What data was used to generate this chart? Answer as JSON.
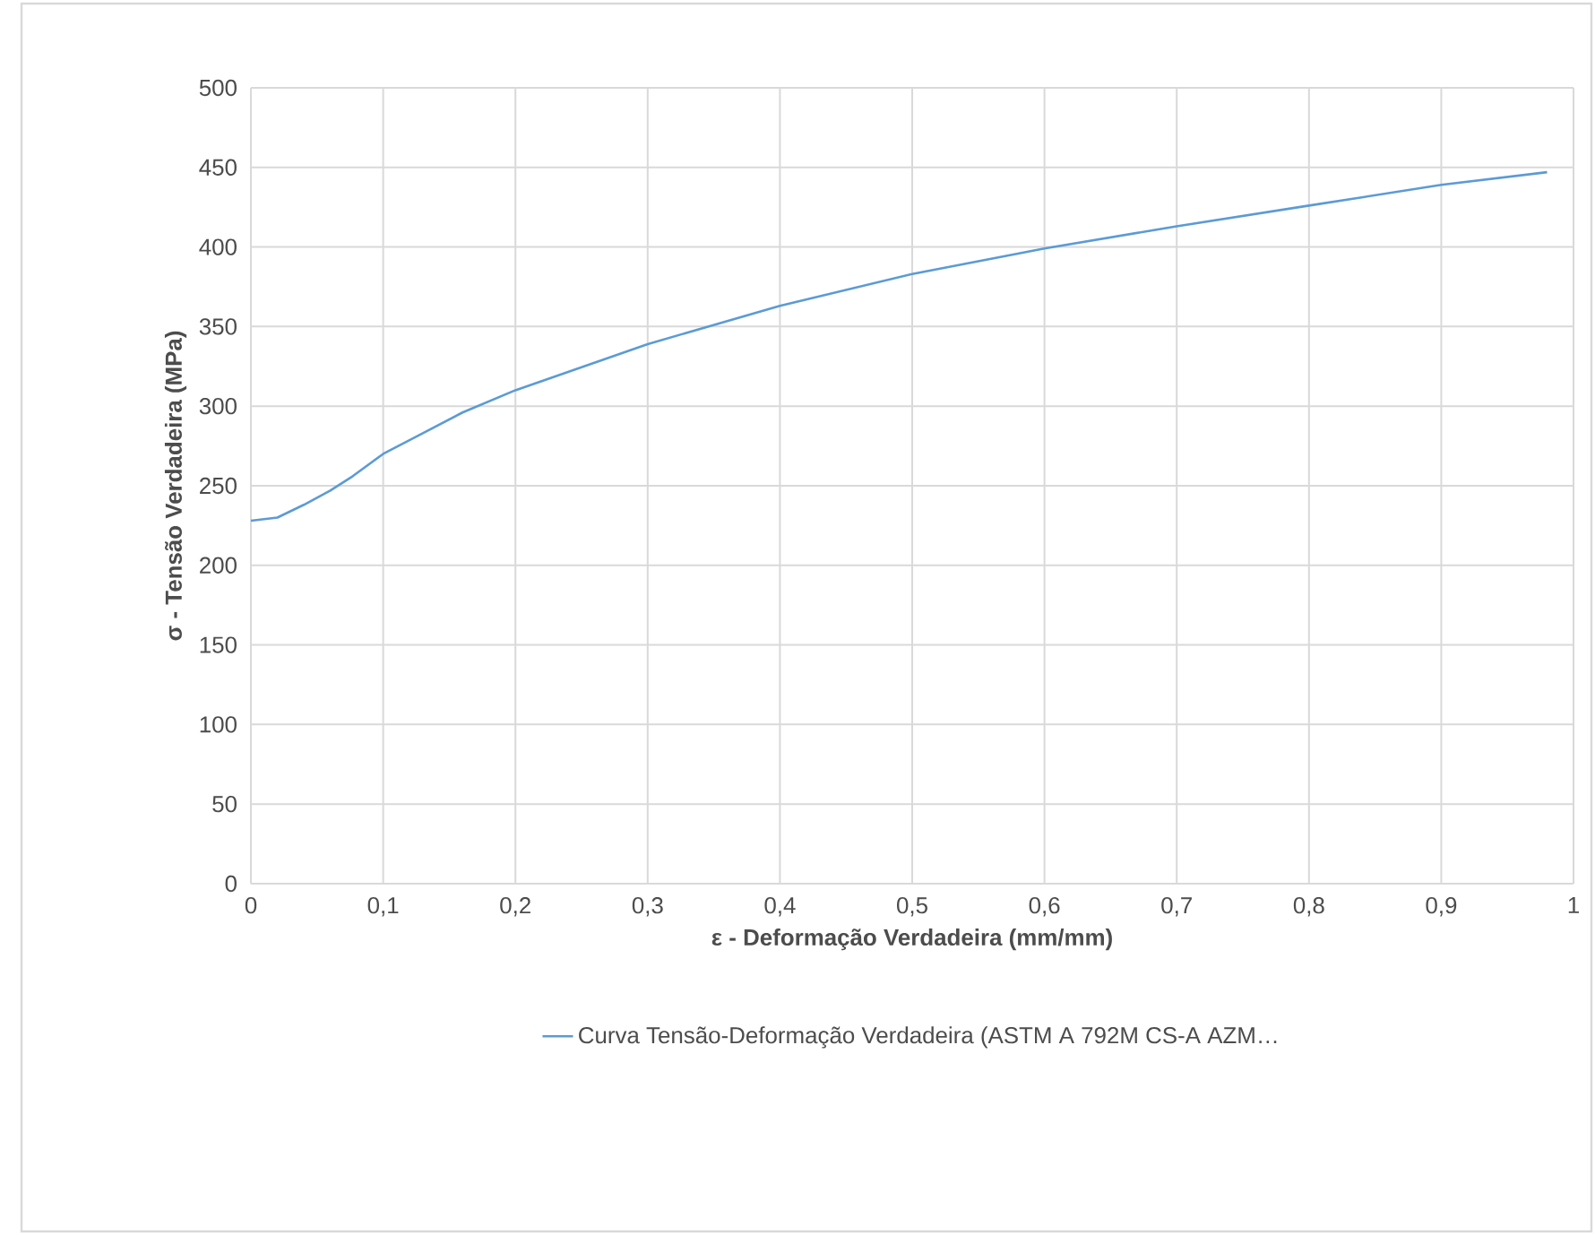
{
  "chart_data": {
    "type": "line",
    "xlabel": "ε - Deformação Verdadeira (mm/mm)",
    "ylabel": "σ - Tensão Verdadeira (MPa)",
    "x": [
      0,
      0.02,
      0.04,
      0.06,
      0.077,
      0.1,
      0.13,
      0.16,
      0.2,
      0.3,
      0.4,
      0.5,
      0.6,
      0.7,
      0.8,
      0.9,
      0.98
    ],
    "series": [
      {
        "name": "Curva Tensão-Deformação Verdadeira (ASTM A 792M CS-A AZM…",
        "color": "#5b9bd5",
        "values": [
          228,
          230,
          238,
          247,
          256,
          270,
          283,
          296,
          310,
          339,
          363,
          383,
          399,
          413,
          426,
          439,
          447
        ]
      }
    ],
    "xlim": [
      0,
      1
    ],
    "xticks": [
      {
        "value": 0,
        "label": "0"
      },
      {
        "value": 0.1,
        "label": "0,1"
      },
      {
        "value": 0.2,
        "label": "0,2"
      },
      {
        "value": 0.3,
        "label": "0,3"
      },
      {
        "value": 0.4,
        "label": "0,4"
      },
      {
        "value": 0.5,
        "label": "0,5"
      },
      {
        "value": 0.6,
        "label": "0,6"
      },
      {
        "value": 0.7,
        "label": "0,7"
      },
      {
        "value": 0.8,
        "label": "0,8"
      },
      {
        "value": 0.9,
        "label": "0,9"
      },
      {
        "value": 1,
        "label": "1"
      }
    ],
    "ylim": [
      0,
      500
    ],
    "yticks": [
      0,
      50,
      100,
      150,
      200,
      250,
      300,
      350,
      400,
      450,
      500
    ],
    "grid": true,
    "legend": "bottom",
    "marker": "none",
    "line_style": "solid"
  }
}
